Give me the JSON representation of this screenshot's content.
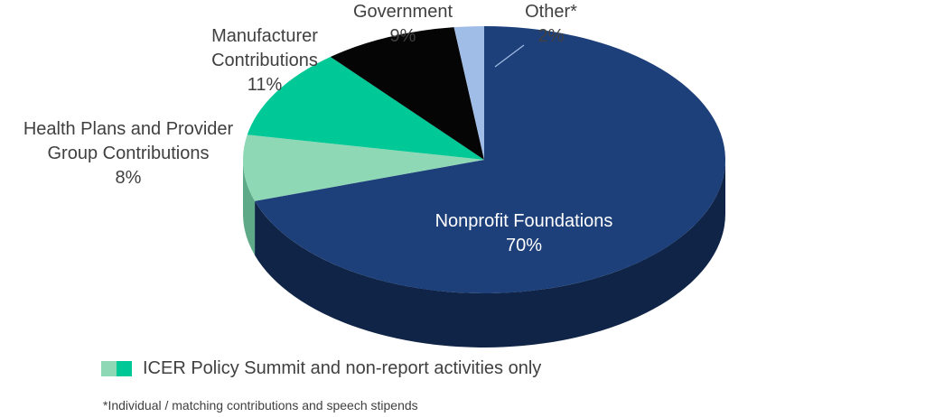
{
  "chart_data": {
    "type": "pie",
    "style": "3d-exploded-tilted",
    "slices": [
      {
        "label": "Nonprofit Foundations",
        "value_label": "70%",
        "value": 70,
        "color": "#1e407a",
        "side_color": "#0f2447"
      },
      {
        "label": "Health Plans and Provider Group Contributions",
        "value_label": "8%",
        "value": 8,
        "color": "#8ed8b6",
        "side_color": "#5ea987"
      },
      {
        "label": "Manufacturer Contributions",
        "value_label": "11%",
        "value": 11,
        "color": "#00c896",
        "side_color": "#008f69"
      },
      {
        "label": "Government",
        "value_label": "9%",
        "value": 9,
        "color": "#050505",
        "side_color": "#000000"
      },
      {
        "label": "Other*",
        "value_label": "2%",
        "value": 2,
        "color": "#9fbde6",
        "side_color": "#6f8fbf"
      }
    ],
    "legend": {
      "text": "ICER Policy Summit and non-report activities only",
      "swatch_colors": [
        "#8ed8b6",
        "#00c896"
      ],
      "placement": "bottom-left"
    },
    "footnote": "*Individual / matching contributions and speech stipends"
  },
  "labels": {
    "nonprofit": {
      "name": "Nonprofit Foundations",
      "pct": "70%"
    },
    "health": {
      "line1": "Health Plans and Provider",
      "line2": "Group Contributions",
      "pct": "8%"
    },
    "manufacturer": {
      "line1": "Manufacturer",
      "line2": "Contributions",
      "pct": "11%"
    },
    "government": {
      "name": "Government",
      "pct": "9%"
    },
    "other": {
      "name": "Other*",
      "pct": "2%"
    }
  }
}
